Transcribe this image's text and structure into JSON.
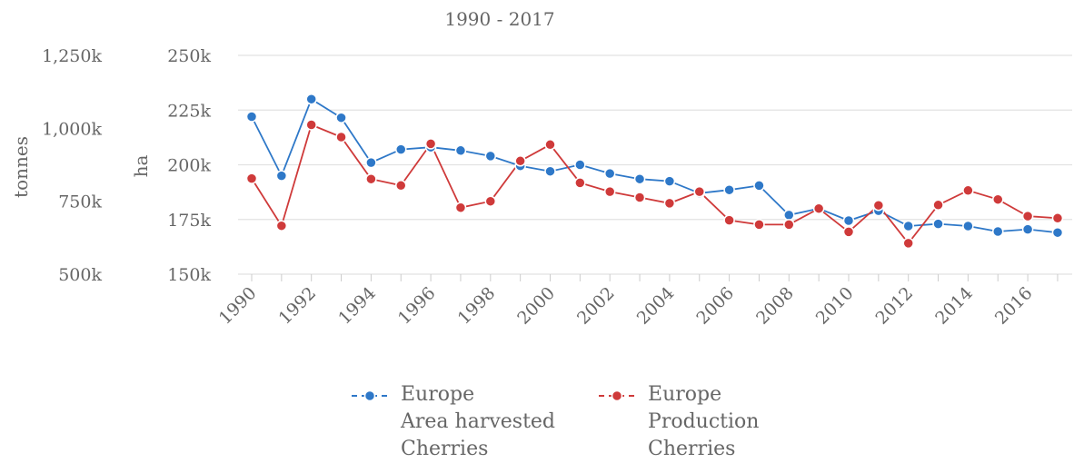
{
  "chart_data": {
    "type": "line",
    "subtitle": "1990 - 2017",
    "x": [
      "1990",
      "1991",
      "1992",
      "1993",
      "1994",
      "1995",
      "1996",
      "1997",
      "1998",
      "1999",
      "2000",
      "2001",
      "2002",
      "2003",
      "2004",
      "2005",
      "2006",
      "2007",
      "2008",
      "2009",
      "2010",
      "2011",
      "2012",
      "2013",
      "2014",
      "2015",
      "2016",
      "2017"
    ],
    "x_tick_labels": [
      "1990",
      "1992",
      "1994",
      "1996",
      "1998",
      "2000",
      "2002",
      "2004",
      "2006",
      "2008",
      "2010",
      "2012",
      "2014",
      "2016"
    ],
    "y_left_outer": {
      "title": "tonnes",
      "ticks": [
        "1,250k",
        "1,000k",
        "750k",
        "500k"
      ],
      "range": [
        500000,
        1250000
      ]
    },
    "y_left_inner": {
      "title": "ha",
      "ticks": [
        "250k",
        "225k",
        "200k",
        "175k",
        "150k"
      ],
      "range": [
        150000,
        250000
      ]
    },
    "grid": true,
    "legend_position": "bottom",
    "series": [
      {
        "name_lines": [
          "Europe",
          "Area harvested",
          "Cherries"
        ],
        "axis": "ha",
        "color": "#2e78c8",
        "values": [
          222000,
          195000,
          230000,
          221500,
          201000,
          207000,
          208000,
          206500,
          204000,
          199500,
          197000,
          200000,
          196000,
          193500,
          192500,
          187000,
          188500,
          190500,
          177000,
          180000,
          174500,
          179000,
          172000,
          173000,
          172000,
          169500,
          170500,
          169000
        ]
      },
      {
        "name_lines": [
          "Europe",
          "Production",
          "Cherries"
        ],
        "axis": "tonnes",
        "color": "#cf3a3a",
        "values": [
          828000,
          666000,
          1012000,
          970000,
          826000,
          804000,
          947000,
          728000,
          750000,
          888000,
          944000,
          813000,
          783000,
          763000,
          743000,
          783000,
          685000,
          670000,
          670000,
          725000,
          645000,
          736000,
          606000,
          737000,
          787000,
          756000,
          699000,
          692000
        ]
      }
    ]
  }
}
